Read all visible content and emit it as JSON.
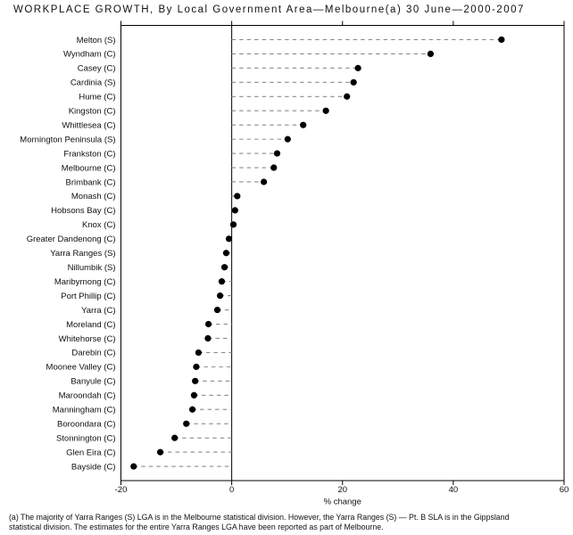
{
  "title": "WORKPLACE GROWTH, By Local Government Area—Melbourne(a) 30 June—2000-2007",
  "chart_data": {
    "type": "scatter",
    "variant": "horizontal-dot-plot",
    "title": "WORKPLACE GROWTH, By Local Government Area—Melbourne(a) 30 June—2000-2007",
    "xlabel": "% change",
    "xlim": [
      -20,
      60
    ],
    "xticks": [
      -20,
      0,
      20,
      40,
      60
    ],
    "baseline": 0,
    "grid": false,
    "legend": "none",
    "marker": "filled-circle",
    "connector_style": "dashed",
    "categories": [
      "Melton (S)",
      "Wyndham (C)",
      "Casey (C)",
      "Cardinia (S)",
      "Hume (C)",
      "Kingston (C)",
      "Whittlesea (C)",
      "Mornington Peninsula (S)",
      "Frankston (C)",
      "Melbourne (C)",
      "Brimbank (C)",
      "Monash (C)",
      "Hobsons Bay (C)",
      "Knox (C)",
      "Greater Dandenong (C)",
      "Yarra Ranges (S)",
      "Nillumbik (S)",
      "Maribyrnong (C)",
      "Port Phillip (C)",
      "Yarra (C)",
      "Moreland (C)",
      "Whitehorse (C)",
      "Darebin (C)",
      "Moonee Valley (C)",
      "Banyule (C)",
      "Maroondah (C)",
      "Manningham (C)",
      "Boroondara (C)",
      "Stonnington (C)",
      "Glen Eira (C)",
      "Bayside (C)"
    ],
    "values": [
      48.7,
      35.9,
      22.8,
      22.0,
      20.8,
      17.0,
      12.9,
      10.1,
      8.2,
      7.6,
      5.8,
      1.0,
      0.6,
      0.3,
      -0.5,
      -1.0,
      -1.3,
      -1.8,
      -2.1,
      -2.6,
      -4.2,
      -4.3,
      -6.0,
      -6.4,
      -6.6,
      -6.8,
      -7.1,
      -8.2,
      -10.3,
      -12.9,
      -17.7
    ]
  },
  "footnote": {
    "line1": "(a) The majority of Yarra Ranges (S) LGA is in the Melbourne statistical division. However, the Yarra Ranges (S) — Pt. B SLA is in the Gippsland",
    "line2": "statistical division. The estimates for the entire Yarra Ranges LGA have been reported as part of Melbourne."
  },
  "colors": {
    "dot": "#000000",
    "connector": "#8c8c8c",
    "axis": "#000000",
    "text": "#111111",
    "background": "#ffffff"
  }
}
